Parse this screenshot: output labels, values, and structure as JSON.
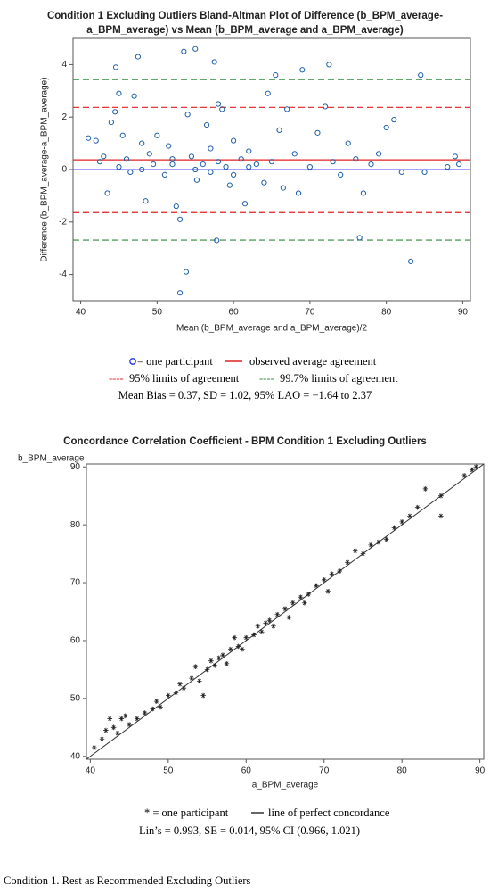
{
  "chart_data": [
    {
      "type": "scatter",
      "marker": "circle",
      "title_lines": [
        "Condition 1 Excluding Outliers Bland-Altman Plot of Difference (b_BPM_average-",
        "a_BPM_average) vs Mean (b_BPM_average and a_BPM_average)"
      ],
      "x_label": "Mean (b_BPM_average and a_BPM_average)/2",
      "y_label": "Difference (b_BPM_average-a_BPM_average)",
      "xlim": [
        39,
        91
      ],
      "xticks": [
        40,
        50,
        60,
        70,
        80,
        90
      ],
      "ylim": [
        -5,
        5
      ],
      "yticks": [
        -4,
        -2,
        0,
        2,
        4
      ],
      "color": "#1f5fa8",
      "zero_line": {
        "value": 0,
        "color": "#4a4aff"
      },
      "lines": [
        {
          "name": "observed average agreement",
          "color": "#e02020",
          "dashed": false,
          "values": [
            0.37
          ]
        },
        {
          "name": "95% limits of agreement",
          "color": "#e02020",
          "dashed": true,
          "values": [
            -1.64,
            2.37
          ]
        },
        {
          "name": "99.7% limits of agreement",
          "color": "#2e8b3a",
          "dashed": true,
          "values": [
            -2.69,
            3.43
          ]
        }
      ],
      "point_label": "= one participant",
      "legend_symbol": "----",
      "note": "Mean Bias = 0.37, SD = 1.02, 95% LAO = −1.64 to 2.37",
      "x": [
        41,
        42,
        42.5,
        43,
        43.5,
        44,
        44.5,
        44.6,
        45,
        45,
        45.5,
        46,
        46.5,
        47,
        47.5,
        48,
        48.5,
        49,
        49.5,
        50,
        51,
        51.5,
        52,
        52.5,
        53,
        53.5,
        53.8,
        53,
        54,
        54.5,
        55,
        55.2,
        56,
        56.5,
        57,
        57.5,
        57.8,
        58,
        58.5,
        59,
        59.5,
        60,
        61,
        61.5,
        62,
        63,
        64,
        64.5,
        65,
        65.5,
        66,
        66.5,
        67,
        68,
        68.5,
        69,
        70,
        71,
        72,
        72.5,
        73,
        74,
        75,
        76,
        76.5,
        77,
        78,
        79,
        80,
        81,
        82,
        83.2,
        84.5,
        85,
        88,
        89,
        89.5,
        55,
        57,
        60,
        62,
        48,
        52,
        58
      ],
      "values": [
        1.2,
        1.1,
        0.3,
        0.5,
        -0.9,
        1.8,
        2.2,
        3.9,
        2.9,
        0.1,
        1.3,
        0.4,
        -0.1,
        2.8,
        4.3,
        1.0,
        -1.2,
        0.6,
        0.2,
        1.3,
        -0.2,
        0.9,
        0.2,
        -1.4,
        -1.9,
        4.5,
        -3.9,
        -4.7,
        2.1,
        0.5,
        4.6,
        -0.4,
        0.2,
        1.7,
        0.8,
        4.1,
        -2.7,
        2.5,
        2.3,
        0.1,
        -0.6,
        1.1,
        0.4,
        -1.3,
        0.7,
        0.2,
        -0.5,
        2.9,
        0.3,
        3.6,
        1.5,
        -0.7,
        2.3,
        0.6,
        -0.9,
        3.8,
        0.1,
        1.4,
        2.4,
        4.0,
        0.3,
        -0.2,
        1.0,
        0.4,
        -2.6,
        -0.9,
        0.2,
        0.6,
        1.6,
        1.9,
        -0.1,
        -3.5,
        3.6,
        -0.1,
        0.1,
        0.5,
        0.2,
        0.0,
        -0.1,
        -0.2,
        0.1,
        0.0,
        0.4,
        0.3
      ]
    },
    {
      "type": "scatter",
      "marker": "asterisk",
      "title_lines": [
        "Concordance Correlation Coefficient - BPM Condition 1 Excluding Outliers"
      ],
      "x_label": "a_BPM_average",
      "y_label": "b_BPM_average",
      "xlim": [
        39.5,
        90.5
      ],
      "xticks": [
        40,
        50,
        60,
        70,
        80,
        90
      ],
      "ylim": [
        39.5,
        90.5
      ],
      "yticks": [
        40,
        50,
        60,
        70,
        80,
        90
      ],
      "color": "#222222",
      "identity_line": {
        "name": "line of perfect concordance",
        "color": "#333333"
      },
      "point_label": "* = one participant",
      "note": "Lin’s = 0.993, SE = 0.014, 95% CI (0.966, 1.021)",
      "x": [
        40.5,
        41.5,
        42,
        42.5,
        43,
        43.5,
        44,
        44.5,
        45,
        46,
        47,
        48,
        48.5,
        49,
        50,
        51,
        51.5,
        52,
        53,
        53.5,
        54,
        54.5,
        55,
        55.5,
        56,
        56.5,
        57,
        57.5,
        58,
        58.5,
        59,
        59.5,
        60,
        61,
        61.5,
        62,
        62.5,
        63,
        63.5,
        64,
        65,
        65.5,
        66,
        67,
        67.5,
        68,
        69,
        70,
        70.5,
        71,
        72,
        73,
        74,
        75,
        76,
        77,
        78,
        79,
        80,
        81,
        82,
        83,
        85,
        85,
        88,
        89,
        89.5
      ],
      "values": [
        41.5,
        43,
        44.5,
        46.5,
        45,
        44,
        46.5,
        47,
        45.5,
        46.5,
        47.5,
        48.2,
        49.5,
        48.5,
        50.5,
        51,
        52.5,
        51.8,
        53.5,
        55.5,
        53,
        50.5,
        55,
        56.5,
        55.7,
        57,
        57.5,
        56,
        58.5,
        60.5,
        59,
        58.5,
        60.5,
        61,
        62.5,
        61.5,
        63,
        63.5,
        62.5,
        64.5,
        65.5,
        64,
        66.5,
        67.5,
        66.5,
        68,
        69.5,
        70.5,
        68.5,
        71.5,
        72,
        73.5,
        75.5,
        75,
        76.5,
        77,
        77.5,
        79.5,
        80.5,
        81.5,
        83,
        86.2,
        85,
        81.5,
        88.5,
        89.5,
        90
      ]
    }
  ],
  "caption": "Condition 1. Rest as Recommended Excluding Outliers"
}
